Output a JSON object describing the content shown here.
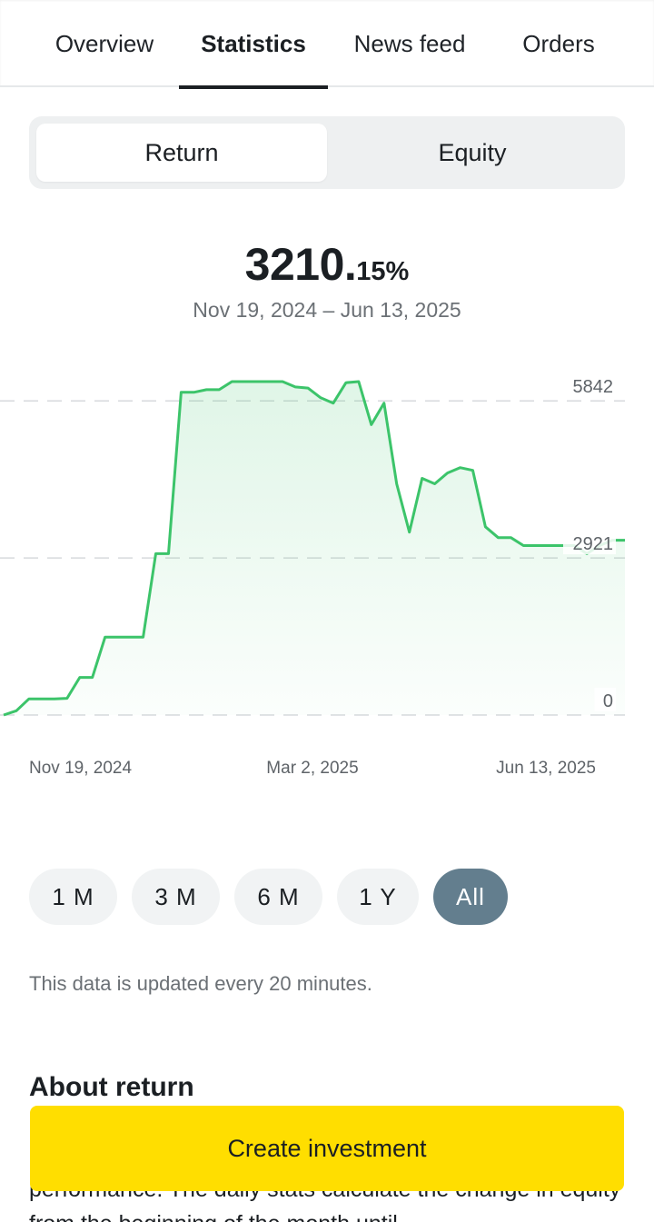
{
  "tabs": [
    {
      "label": "Overview",
      "active": false
    },
    {
      "label": "Statistics",
      "active": true
    },
    {
      "label": "News feed",
      "active": false
    },
    {
      "label": "Orders",
      "active": false
    }
  ],
  "segmented": {
    "return_label": "Return",
    "equity_label": "Equity",
    "selected": "Return"
  },
  "headline": {
    "value_int": "3210.",
    "value_frac": "15%",
    "date_range": "Nov 19, 2024 – Jun 13, 2025"
  },
  "chart_data": {
    "type": "area",
    "line_color": "#3cc46a",
    "x_tick_labels": [
      "Nov 19, 2024",
      "Mar 2, 2025",
      "Jun 13, 2025"
    ],
    "y_tick_labels": [
      "5842",
      "2921",
      "0"
    ],
    "ylim": [
      0,
      6200
    ],
    "y_ticks": [
      0,
      2921,
      5842
    ],
    "grid": "dashed horizontal",
    "values": [
      0,
      80,
      300,
      300,
      300,
      310,
      700,
      700,
      1450,
      1450,
      1450,
      1450,
      3000,
      3000,
      6000,
      6000,
      6050,
      6050,
      6200,
      6200,
      6200,
      6200,
      6200,
      6100,
      6080,
      5900,
      5800,
      6180,
      6200,
      5400,
      5800,
      4300,
      3400,
      4400,
      4300,
      4500,
      4600,
      4550,
      3500,
      3300,
      3300,
      3150,
      3150,
      3150,
      3150,
      3150,
      3000,
      3150,
      3250,
      3250
    ]
  },
  "periods": [
    {
      "label": "1 M",
      "active": false
    },
    {
      "label": "3 M",
      "active": false
    },
    {
      "label": "6 M",
      "active": false
    },
    {
      "label": "1 Y",
      "active": false
    },
    {
      "label": "All",
      "active": true
    }
  ],
  "note": "This data is updated every 20 minutes.",
  "about": {
    "title": "About return",
    "text": "performance. The daily stats calculate the change in equity from the beginning of the month until"
  },
  "cta": {
    "label": "Create investment"
  }
}
